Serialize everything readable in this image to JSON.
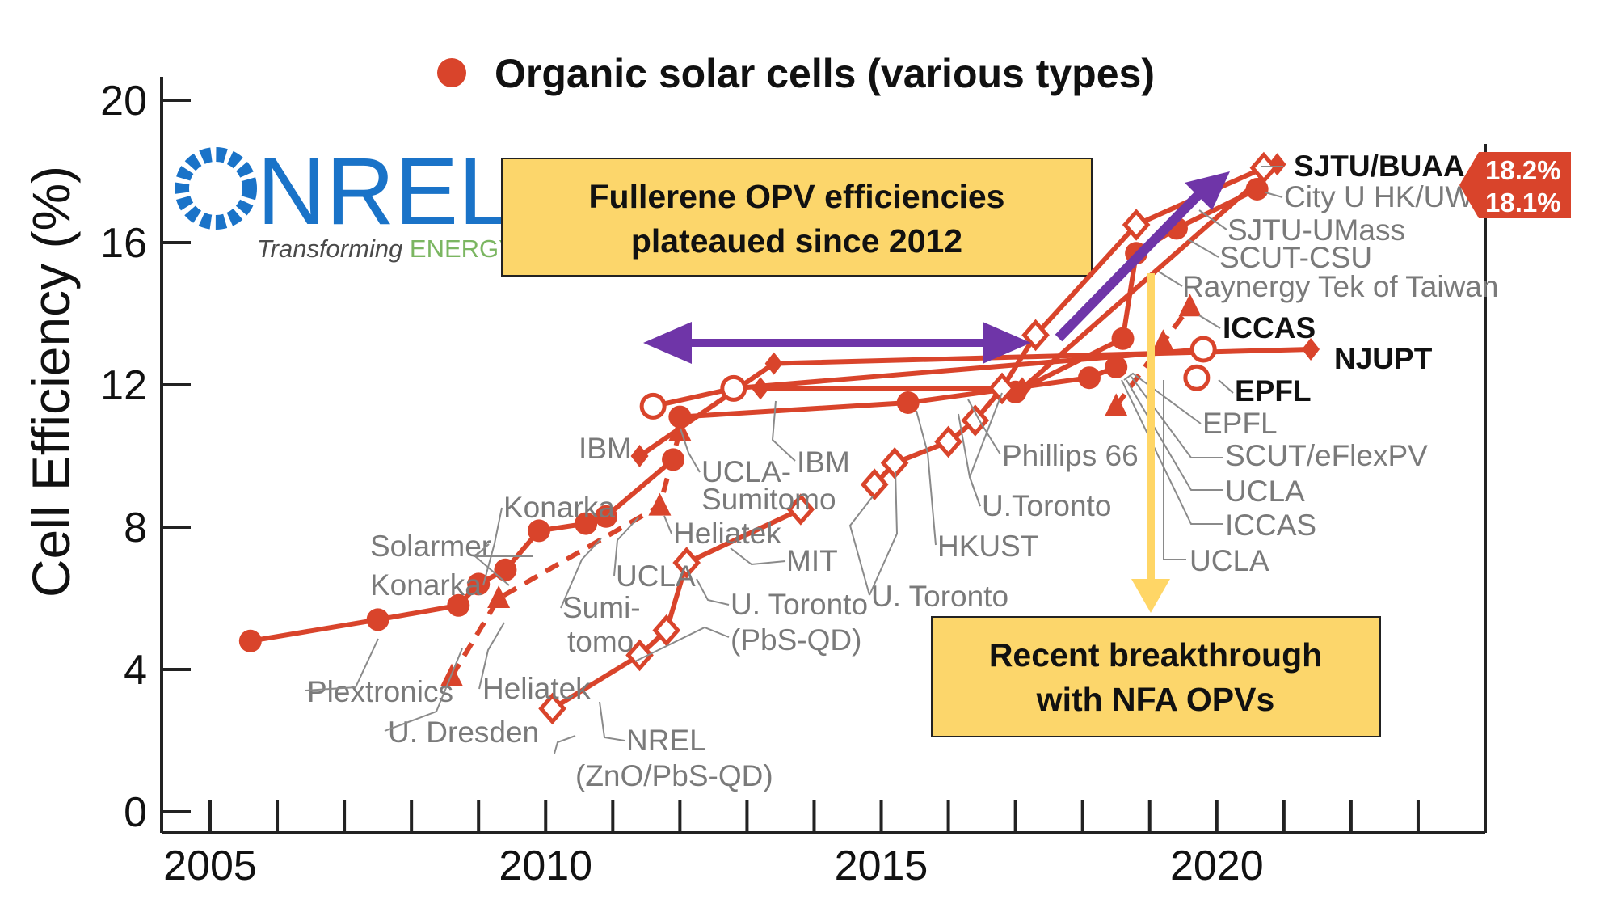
{
  "colors": {
    "series": "#d9442b",
    "series_label": "#7a7a7a",
    "callout_fill": "#fcd66b",
    "purple_arrow": "#6f35a8",
    "yellow_arrow": "#ffd666",
    "nrel_blue": "#1a73c8",
    "nrel_green": "#7bb661",
    "badge": "#d9442b"
  },
  "logo": {
    "name": "NREL",
    "tagline_1": "Transforming ",
    "tagline_2": "ENERGY"
  },
  "callouts": {
    "fullerene_line1": "Fullerene OPV efficiencies",
    "fullerene_line2": "plateaued since 2012",
    "nfa_line1": "Recent breakthrough",
    "nfa_line2": "with NFA OPVs"
  },
  "record_badges": [
    "18.2%",
    "18.1%"
  ],
  "chart_data": {
    "type": "line",
    "title": "",
    "xlabel": "",
    "ylabel": "Cell Efficiency (%)",
    "xlim": [
      2005,
      2024
    ],
    "ylim": [
      0,
      20
    ],
    "x_ticks": [
      2005,
      2010,
      2015,
      2020
    ],
    "y_ticks": [
      0,
      4,
      8,
      12,
      16,
      20
    ],
    "grid": false,
    "legend": {
      "position": "top-center",
      "entries": [
        "Organic solar cells (various types)"
      ],
      "marker": "filled-circle"
    },
    "series": [
      {
        "marker": "filled-circle",
        "style": "solid",
        "x": [
          2005.6,
          2007.5,
          2008.7,
          2009.0,
          2009.4,
          2009.9,
          2010.6,
          2010.9,
          2011.9
        ],
        "y": [
          4.8,
          5.4,
          5.8,
          6.4,
          6.8,
          7.9,
          8.1,
          8.3,
          9.9
        ]
      },
      {
        "marker": "filled-triangle",
        "style": "dashed",
        "x": [
          2008.6,
          2009.3,
          2011.7,
          2012.0
        ],
        "y": [
          3.8,
          6.0,
          8.6,
          10.7
        ]
      },
      {
        "marker": "filled-diamond",
        "style": "solid",
        "x": [
          2011.4,
          2013.4,
          2021.4
        ],
        "y": [
          10.0,
          12.6,
          13.0
        ]
      },
      {
        "marker": "open-circle",
        "style": "solid",
        "x": [
          2011.6,
          2012.8,
          2019.8
        ],
        "y": [
          11.4,
          11.9,
          13.0
        ]
      },
      {
        "marker": "filled-circle",
        "style": "solid",
        "x": [
          2012.0,
          2015.4,
          2018.1,
          2018.5
        ],
        "y": [
          11.1,
          11.5,
          12.2,
          12.5
        ]
      },
      {
        "marker": "filled-circle",
        "style": "solid",
        "x": [
          2017.0,
          2018.6,
          2018.8,
          2019.4,
          2020.6
        ],
        "y": [
          11.8,
          13.3,
          15.7,
          16.4,
          17.5
        ]
      },
      {
        "marker": "filled-diamond",
        "style": "solid",
        "x": [
          2013.2,
          2017.1,
          2020.9
        ],
        "y": [
          11.9,
          11.9,
          18.2
        ]
      },
      {
        "marker": "open-diamond",
        "style": "solid",
        "x": [
          2014.9,
          2015.2,
          2016.0,
          2016.4,
          2016.8,
          2017.3,
          2018.8,
          2020.7
        ],
        "y": [
          9.2,
          9.8,
          10.4,
          11.0,
          11.9,
          13.4,
          16.5,
          18.1
        ]
      },
      {
        "marker": "open-diamond",
        "style": "solid",
        "x": [
          2010.1,
          2011.4,
          2011.8,
          2012.1,
          2013.8
        ],
        "y": [
          2.9,
          4.4,
          5.1,
          7.0,
          8.5
        ]
      },
      {
        "marker": "filled-triangle",
        "style": "dashed",
        "x": [
          2018.5,
          2019.2,
          2019.6
        ],
        "y": [
          11.4,
          13.2,
          14.2
        ]
      },
      {
        "marker": "open-circle",
        "style": "solid",
        "x": [
          2019.7
        ],
        "y": [
          12.2
        ]
      }
    ],
    "annotations": [
      "SJTU/BUAA",
      "City U HK/UW",
      "SJTU-UMass",
      "SCUT-CSU",
      "Raynergy Tek of Taiwan",
      "ICCAS",
      "NJUPT",
      "EPFL",
      "EPFL",
      "SCUT/eFlexPV",
      "UCLA",
      "ICCAS",
      "UCLA",
      "Phillips 66",
      "U.Toronto",
      "HKUST",
      "U. Toronto",
      "MIT",
      "U. Toronto",
      "(PbS-QD)",
      "NREL",
      "(ZnO/PbS-QD)",
      "IBM",
      "IBM",
      "UCLA-",
      "Sumitomo",
      "Heliatek",
      "UCLA",
      "Sumi-",
      "tomo",
      "Konarka",
      "Solarmer",
      "Konarka",
      "Plextronics",
      "Heliatek",
      "U. Dresden"
    ]
  }
}
